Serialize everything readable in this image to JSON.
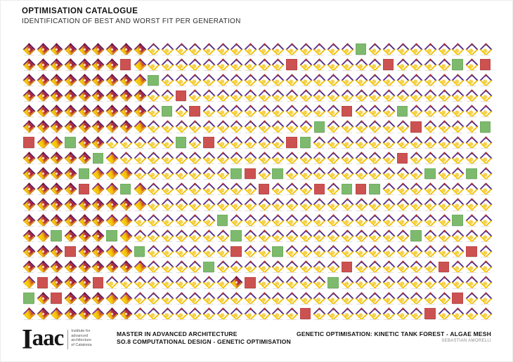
{
  "title": "OPTIMISATION CATALOGUE",
  "subtitle": "IDENTIFICATION OF BEST AND WORST FIT PER GENERATION",
  "colors": {
    "best_fit_green": "#7eba6d",
    "worst_fit_red": "#cc5252",
    "thumbnail_purple": "#4f2a85",
    "thumbnail_yellow": "#f5c804",
    "thumbnail_crimson": "#a81f42"
  },
  "grid": {
    "columns": 34,
    "rows": 18,
    "cell_legend": {
      "a": "thumbnail-red-heavy",
      "b": "thumbnail-orange",
      "c": "thumbnail-light",
      "G": "best-fit-square",
      "R": "worst-fit-square"
    },
    "rows_map": [
      "aaaaaaaaacccccccccccccccGccccccccc",
      "aaaaaaaRbccccccccccRccccccRccccGcR",
      "aaaaaaaabGcccccccccccccccccccccccc",
      "aaaaaaaaaccRcccccccccccccccccccccc",
      "aaaaaaaaacGcRccccccccccRcccGcccccc",
      "aaaaaaaabccccccccccccGccccccRccccG",
      "RbbGaacccccGcRcccccRGccccccccccccc",
      "aaaaaGbccccccccccccccccccccRcccccc",
      "aaaaGbbbcccccccGRcGccccccccccGccGc",
      "aaaaRbbGbccccccccRcccRcGRGcccccccc",
      "aaaaaaaabccccccccccccccccccccccccc",
      "aaaaaabbccccccGccccccccccccccccGcc",
      "abGaaaGbcccccccGccccccccccccGccccc",
      "aaaRaabbGccccccRccGcccccccccccccRc",
      "aaaaaaaabccccGcccccccccRccccccRccc",
      "bRaaaRcccccccccaRcccccGccccccccccc",
      "GaRaaabbcccccccccccccccccccccccRcc",
      "babaabaaccccccccccccRccccccccRcccc"
    ]
  },
  "footer": {
    "logo_text": "Iaac",
    "institute_lines": [
      "Institute for",
      "advanced",
      "architecture",
      "of Catalonia"
    ],
    "program_line1": "MASTER IN ADVANCED ARCHITECTURE",
    "program_line2": "SO.8 COMPUTATIONAL DESIGN - GENETIC OPTIMISATION",
    "project_title": "GENETIC OPTIMISATION: KINETIC TANK FOREST  - ALGAE MESH",
    "author": "SEBASTIAN AMORELLI"
  }
}
